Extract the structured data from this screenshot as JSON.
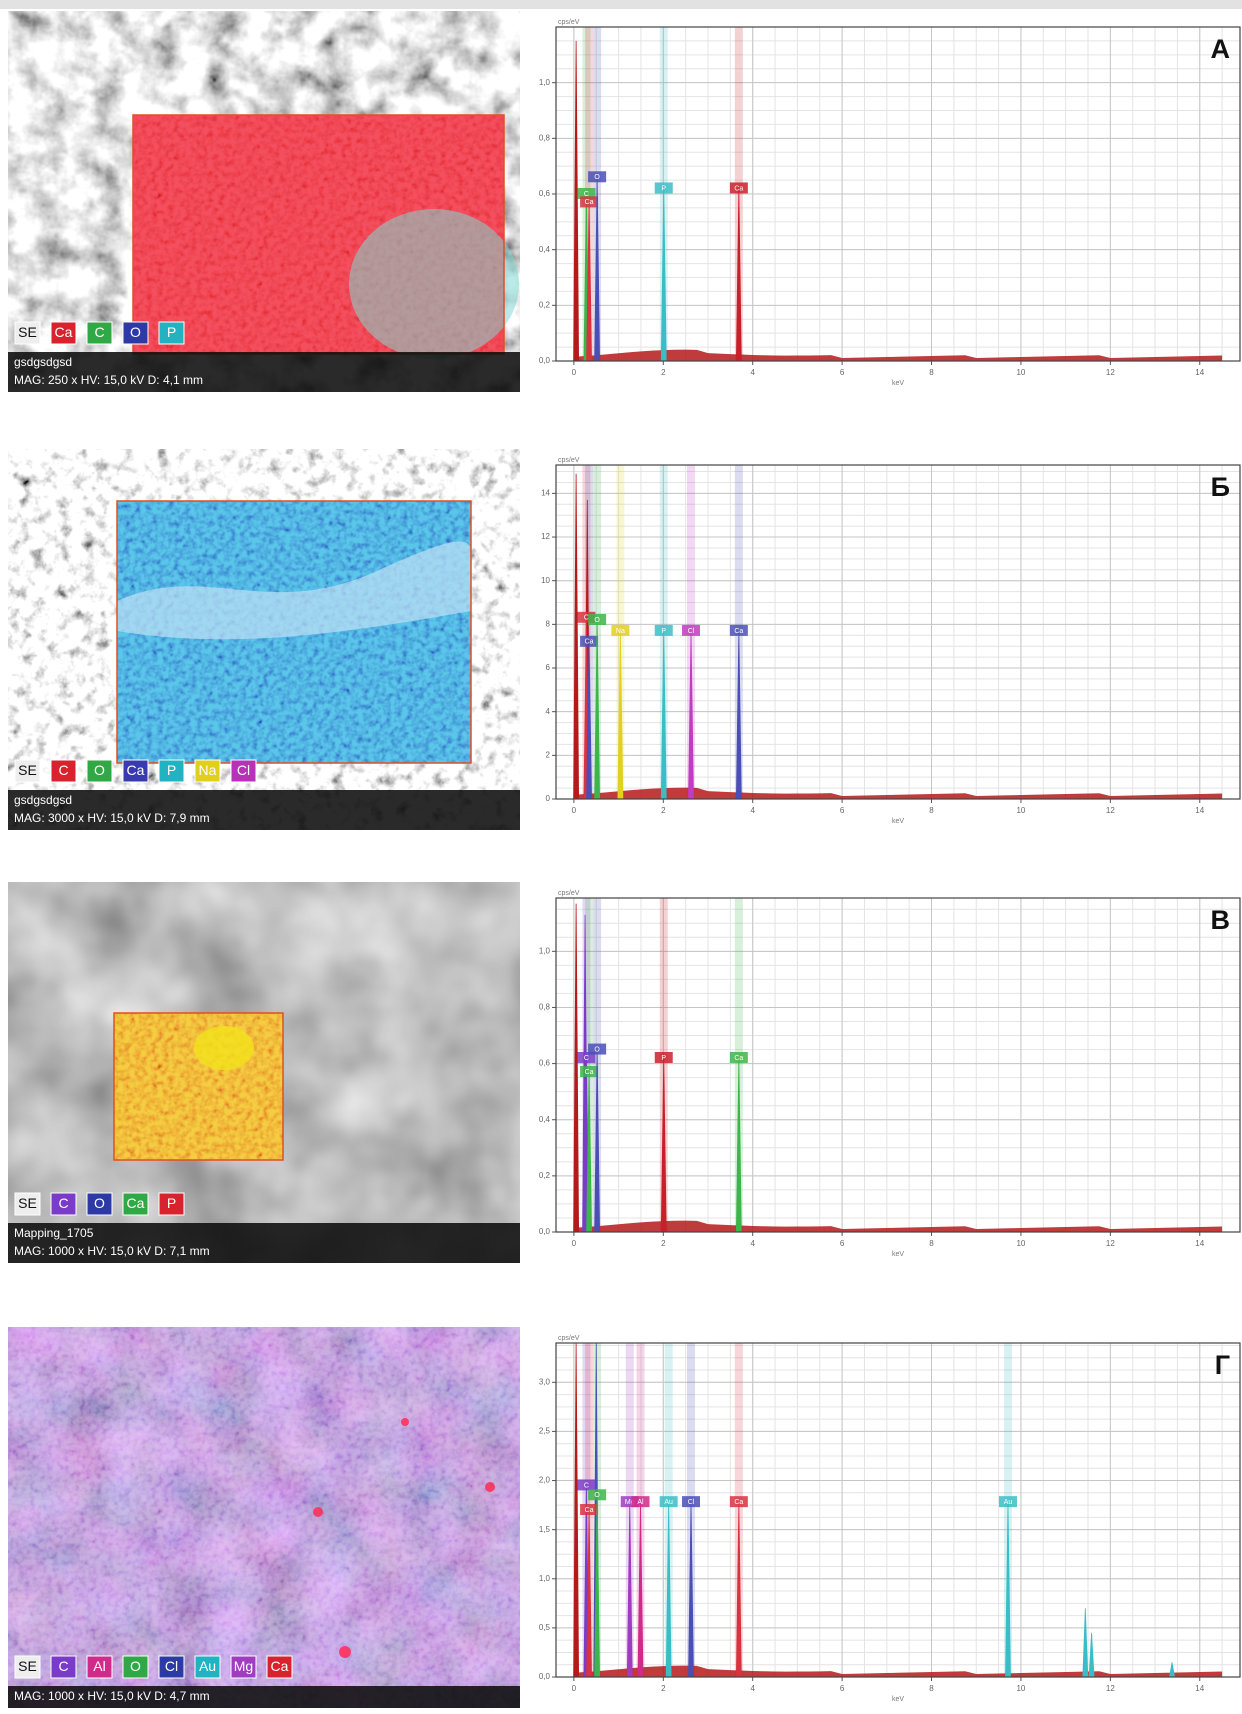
{
  "x_unit": "keV",
  "y_unit": "cps/eV",
  "panels": [
    {
      "label": "А",
      "legend": [
        {
          "text": "SE",
          "color": "#eeeeee"
        },
        {
          "text": "Ca",
          "color": "#d8232f"
        },
        {
          "text": "C",
          "color": "#2fa845"
        },
        {
          "text": "O",
          "color": "#2d3aa6"
        },
        {
          "text": "P",
          "color": "#22b3c2"
        }
      ],
      "caption": [
        "gsdgsdgsd",
        "MAG: 250 x   HV: 15,0 kV   D: 4,1 mm"
      ],
      "spectrum": {
        "xlim": [
          -0.4,
          14.9
        ],
        "xticks": [
          0,
          2,
          4,
          6,
          8,
          10,
          12,
          14
        ],
        "ylim": [
          0,
          1.2
        ],
        "yticks": [
          {
            "value": 0,
            "label": "0,0"
          },
          {
            "value": 0.2,
            "label": "0,2"
          },
          {
            "value": 0.4,
            "label": "0,4"
          },
          {
            "value": 0.6,
            "label": "0,6"
          },
          {
            "value": 0.8,
            "label": "0,8"
          },
          {
            "value": 1,
            "label": "1,0"
          }
        ],
        "peaks": [
          {
            "x": 0.05,
            "height": 1.15,
            "color": "#b51a1a"
          },
          {
            "x": 0.28,
            "height": 0.6,
            "color": "#3db54a",
            "label": "C"
          },
          {
            "x": 0.34,
            "height": 0.57,
            "color": "#d8333f",
            "label": "Ca"
          },
          {
            "x": 0.52,
            "height": 0.66,
            "color": "#4a4fb5",
            "label": "O"
          },
          {
            "x": 2.01,
            "height": 0.62,
            "color": "#3bbdc6",
            "label": "P"
          },
          {
            "x": 3.69,
            "height": 0.62,
            "color": "#c8202a",
            "label": "Ca"
          }
        ]
      }
    },
    {
      "label": "Б",
      "legend": [
        {
          "text": "SE",
          "color": "#eeeeee"
        },
        {
          "text": "C",
          "color": "#d8232f"
        },
        {
          "text": "O",
          "color": "#2fa845"
        },
        {
          "text": "Ca",
          "color": "#3a3ab0"
        },
        {
          "text": "P",
          "color": "#22b3c2"
        },
        {
          "text": "Na",
          "color": "#e0cf1c"
        },
        {
          "text": "Cl",
          "color": "#b832b8"
        }
      ],
      "caption": [
        "gsdgsdgsd",
        "MAG: 3000 x   HV: 15,0 kV   D: 7,9 mm"
      ],
      "spectrum": {
        "xlim": [
          -0.4,
          14.9
        ],
        "xticks": [
          0,
          2,
          4,
          6,
          8,
          10,
          12,
          14
        ],
        "ylim": [
          0,
          15.3
        ],
        "yticks": [
          0,
          2,
          4,
          6,
          8,
          10,
          12,
          14
        ],
        "peaks": [
          {
            "x": 0.05,
            "height": 14.9,
            "color": "#b51a1a"
          },
          {
            "x": 0.3,
            "height": 13.7,
            "color": "#b51a1a"
          },
          {
            "x": 0.28,
            "height": 8.3,
            "color": "#d8333f",
            "label": "C"
          },
          {
            "x": 0.34,
            "height": 7.2,
            "color": "#4a4fb5",
            "label": "Ca"
          },
          {
            "x": 0.52,
            "height": 8.2,
            "color": "#3db54a",
            "label": "O"
          },
          {
            "x": 1.04,
            "height": 7.7,
            "color": "#e0d020",
            "label": "Na"
          },
          {
            "x": 2.01,
            "height": 7.7,
            "color": "#3bbdc6",
            "label": "P"
          },
          {
            "x": 2.62,
            "height": 7.7,
            "color": "#c03cc0",
            "label": "Cl"
          },
          {
            "x": 3.69,
            "height": 7.7,
            "color": "#4a4fb5",
            "label": "Ca"
          }
        ]
      }
    },
    {
      "label": "В",
      "legend": [
        {
          "text": "SE",
          "color": "#eeeeee"
        },
        {
          "text": "C",
          "color": "#7a3cc8"
        },
        {
          "text": "O",
          "color": "#2d3aa6"
        },
        {
          "text": "Ca",
          "color": "#2fa845"
        },
        {
          "text": "P",
          "color": "#d8232f"
        }
      ],
      "caption": [
        "Mapping_1705",
        "MAG: 1000 x   HV: 15,0 kV   D: 7,1 mm"
      ],
      "spectrum": {
        "xlim": [
          -0.4,
          14.9
        ],
        "xticks": [
          0,
          2,
          4,
          6,
          8,
          10,
          12,
          14
        ],
        "ylim": [
          0,
          1.19
        ],
        "yticks": [
          {
            "value": 0,
            "label": "0,0"
          },
          {
            "value": 0.2,
            "label": "0,2"
          },
          {
            "value": 0.4,
            "label": "0,4"
          },
          {
            "value": 0.6,
            "label": "0,6"
          },
          {
            "value": 0.8,
            "label": "0,8"
          },
          {
            "value": 1,
            "label": "1,0"
          }
        ],
        "peaks": [
          {
            "x": 0.05,
            "height": 1.17,
            "color": "#b51a1a"
          },
          {
            "x": 0.25,
            "height": 1.13,
            "color": "#7a3cc8"
          },
          {
            "x": 0.28,
            "height": 0.62,
            "color": "#7a3cc8",
            "label": "C"
          },
          {
            "x": 0.34,
            "height": 0.57,
            "color": "#3db54a",
            "label": "Ca"
          },
          {
            "x": 0.52,
            "height": 0.65,
            "color": "#4a4fb5",
            "label": "O"
          },
          {
            "x": 2.01,
            "height": 0.62,
            "color": "#c8202a",
            "label": "P"
          },
          {
            "x": 3.69,
            "height": 0.62,
            "color": "#3db54a",
            "label": "Ca"
          }
        ]
      }
    },
    {
      "label": "Г",
      "legend": [
        {
          "text": "SE",
          "color": "#eeeeee"
        },
        {
          "text": "C",
          "color": "#7a3cc8"
        },
        {
          "text": "Al",
          "color": "#d02a8a"
        },
        {
          "text": "O",
          "color": "#2fa845"
        },
        {
          "text": "Cl",
          "color": "#2d3aa6"
        },
        {
          "text": "Au",
          "color": "#22b3c2"
        },
        {
          "text": "Mg",
          "color": "#a03cc0"
        },
        {
          "text": "Ca",
          "color": "#d8232f"
        }
      ],
      "caption": [
        "MAG: 1000 x   HV: 15,0 kV   D: 4,7 mm"
      ],
      "spectrum": {
        "xlim": [
          -0.4,
          14.9
        ],
        "xticks": [
          0,
          2,
          4,
          6,
          8,
          10,
          12,
          14
        ],
        "ylim": [
          0,
          3.4
        ],
        "yticks": [
          {
            "value": 0,
            "label": "0,0"
          },
          {
            "value": 0.5,
            "label": "0,5"
          },
          {
            "value": 1,
            "label": "1,0"
          },
          {
            "value": 1.5,
            "label": "1,5"
          },
          {
            "value": 2,
            "label": "2,0"
          },
          {
            "value": 2.5,
            "label": "2,5"
          },
          {
            "value": 3,
            "label": "3,0"
          }
        ],
        "peaks": [
          {
            "x": 0.05,
            "height": 3.4,
            "color": "#b51a1a"
          },
          {
            "x": 0.5,
            "height": 3.4,
            "color": "#4a4fb5"
          },
          {
            "x": 0.28,
            "height": 1.95,
            "color": "#7a3cc8",
            "label": "C"
          },
          {
            "x": 0.34,
            "height": 1.7,
            "color": "#d8333f",
            "label": "Ca"
          },
          {
            "x": 0.52,
            "height": 1.85,
            "color": "#3db54a",
            "label": "O"
          },
          {
            "x": 1.25,
            "height": 1.78,
            "color": "#a03cc0",
            "label": "Mg"
          },
          {
            "x": 1.49,
            "height": 1.78,
            "color": "#d02a8a",
            "label": "Al"
          },
          {
            "x": 2.12,
            "height": 1.78,
            "color": "#3bbdc6",
            "label": "Au"
          },
          {
            "x": 2.62,
            "height": 1.78,
            "color": "#4a4fb5",
            "label": "Cl"
          },
          {
            "x": 3.69,
            "height": 1.78,
            "color": "#d8333f",
            "label": "Ca"
          },
          {
            "x": 9.71,
            "height": 1.78,
            "color": "#3bbdc6",
            "label": "Au"
          },
          {
            "x": 11.44,
            "height": 0.7,
            "color": "#3bbdc6"
          },
          {
            "x": 11.58,
            "height": 0.45,
            "color": "#3bbdc6"
          },
          {
            "x": 13.38,
            "height": 0.15,
            "color": "#3bbdc6"
          }
        ]
      }
    }
  ]
}
